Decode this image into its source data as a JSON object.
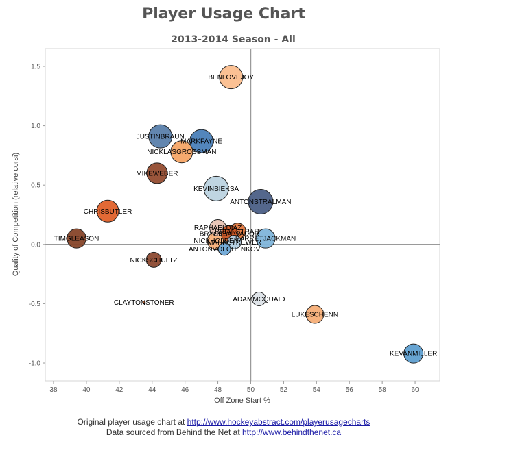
{
  "chart_data": {
    "type": "scatter",
    "title": "Player Usage Chart",
    "subtitle": "2013-2014 Season - All",
    "xlabel": "Off Zone Start %",
    "ylabel": "Quality of Competition (relative corsi)",
    "xlim": [
      37.5,
      61.5
    ],
    "ylim": [
      -1.15,
      1.65
    ],
    "xticks": [
      38,
      40,
      42,
      44,
      46,
      48,
      50,
      52,
      54,
      56,
      58,
      60
    ],
    "yticks": [
      -1.0,
      -0.5,
      0.0,
      0.5,
      1.0,
      1.5
    ],
    "reference_lines": {
      "x": 50,
      "y": 0
    },
    "points": [
      {
        "name": "BENLOVEJOY",
        "x": 48.8,
        "y": 1.41,
        "size": 17,
        "color": "#fbbe8e"
      },
      {
        "name": "JUSTINBRAUN",
        "x": 44.5,
        "y": 0.91,
        "size": 17,
        "color": "#5a7fab"
      },
      {
        "name": "MARKFAYNE",
        "x": 47.0,
        "y": 0.87,
        "size": 17,
        "color": "#4a7fb8"
      },
      {
        "name": "NICKLASGROSSMAN",
        "x": 45.8,
        "y": 0.78,
        "size": 16,
        "color": "#f5a566"
      },
      {
        "name": "MIKEWEBER",
        "x": 44.3,
        "y": 0.6,
        "size": 15,
        "color": "#934c30"
      },
      {
        "name": "KEVINBIEKSA",
        "x": 47.9,
        "y": 0.47,
        "size": 18,
        "color": "#bcd3e0"
      },
      {
        "name": "ANTONSTRALMAN",
        "x": 50.6,
        "y": 0.36,
        "size": 18,
        "color": "#4b5f86"
      },
      {
        "name": "CHRISBUTLER",
        "x": 41.3,
        "y": 0.28,
        "size": 16,
        "color": "#e0612a"
      },
      {
        "name": "TIMGLEASON",
        "x": 39.4,
        "y": 0.05,
        "size": 14,
        "color": "#864429"
      },
      {
        "name": "RAPHAELDIAZ",
        "x": 48.0,
        "y": 0.14,
        "size": 12,
        "color": "#e7c3b4"
      },
      {
        "name": "BRIANSTRAIT",
        "x": 49.2,
        "y": 0.11,
        "size": 12,
        "color": "#e2783f"
      },
      {
        "name": "BRYCESALVADOR",
        "x": 48.7,
        "y": 0.09,
        "size": 12,
        "color": "#c95423"
      },
      {
        "name": "BARRETJACKMAN",
        "x": 50.9,
        "y": 0.05,
        "size": 14,
        "color": "#7fb5da"
      },
      {
        "name": "NICKHOLDEN",
        "x": 47.9,
        "y": 0.03,
        "size": 13,
        "color": "#f8b17a"
      },
      {
        "name": "MARKSTREWER",
        "x": 49.0,
        "y": 0.02,
        "size": 10,
        "color": "#b4d0e3"
      },
      {
        "name": "ANTONVOLCHENKOV",
        "x": 48.4,
        "y": -0.04,
        "size": 9,
        "color": "#6fa8d6"
      },
      {
        "name": "NICKSCHULTZ",
        "x": 44.1,
        "y": -0.13,
        "size": 11,
        "color": "#8c4a32"
      },
      {
        "name": "CLAYTONSTONER",
        "x": 43.5,
        "y": -0.49,
        "size": 2,
        "color": "#b45a2e"
      },
      {
        "name": "ADAMMCQUAID",
        "x": 50.5,
        "y": -0.46,
        "size": 10,
        "color": "#dde3e8"
      },
      {
        "name": "LUKESCHENN",
        "x": 53.9,
        "y": -0.59,
        "size": 13,
        "color": "#f6ae77"
      },
      {
        "name": "KEVANMILLER",
        "x": 59.9,
        "y": -0.92,
        "size": 14,
        "color": "#5f9fd0"
      }
    ]
  },
  "footer": {
    "line1_text": "Original player usage chart at ",
    "line1_link": "http://www.hockeyabstract.com/playerusagecharts",
    "line2_text": "Data sourced from Behind the Net at ",
    "line2_link": "http://www.behindthenet.ca"
  }
}
